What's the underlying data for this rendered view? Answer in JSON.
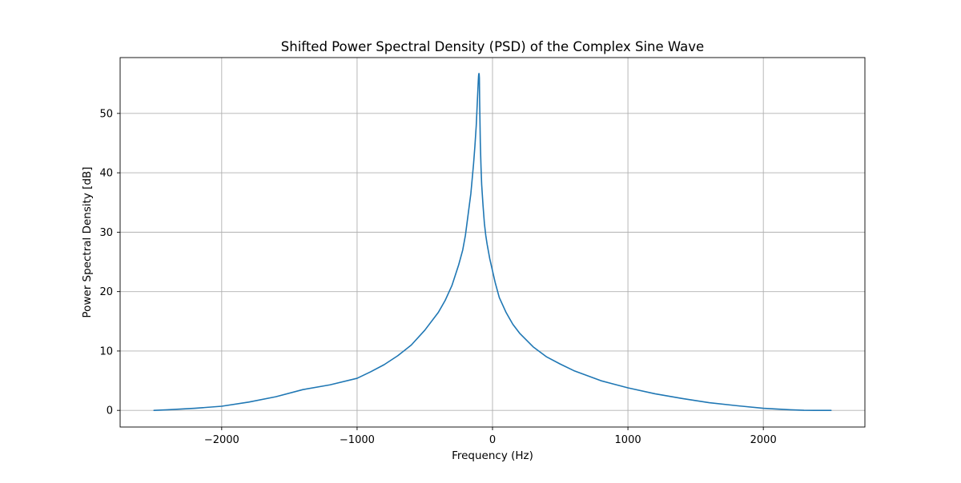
{
  "chart_data": {
    "type": "line",
    "title": "Shifted Power Spectral Density (PSD) of the Complex Sine Wave",
    "xlabel": "Frequency (Hz)",
    "ylabel": "Power Spectral Density [dB]",
    "xlim": [
      -2750,
      2750
    ],
    "ylim": [
      -2.8,
      59.4
    ],
    "xticks": [
      -2000,
      -1000,
      0,
      1000,
      2000
    ],
    "xtick_labels": [
      "−2000",
      "−1000",
      "0",
      "1000",
      "2000"
    ],
    "yticks": [
      0,
      10,
      20,
      30,
      40,
      50
    ],
    "ytick_labels": [
      "0",
      "10",
      "20",
      "30",
      "40",
      "50"
    ],
    "grid": true,
    "line_color": "#1f77b4",
    "series": [
      {
        "x": [
          -2500,
          -2400,
          -2200,
          -2000,
          -1800,
          -1600,
          -1400,
          -1200,
          -1000,
          -900,
          -800,
          -700,
          -600,
          -500,
          -400,
          -350,
          -300,
          -250,
          -220,
          -200,
          -180,
          -160,
          -140,
          -130,
          -120,
          -115,
          -110,
          -105,
          -103,
          -101,
          -100,
          -99,
          -97,
          -95,
          -90,
          -85,
          -80,
          -70,
          -60,
          -50,
          -40,
          -20,
          0,
          20,
          50,
          100,
          150,
          200,
          300,
          400,
          500,
          600,
          800,
          1000,
          1200,
          1400,
          1600,
          1800,
          2000,
          2200,
          2300,
          2400,
          2500
        ],
        "y": [
          0.0,
          0.1,
          0.35,
          0.7,
          1.4,
          2.3,
          3.5,
          4.3,
          5.4,
          6.5,
          7.7,
          9.2,
          11.0,
          13.5,
          16.5,
          18.5,
          21.0,
          24.5,
          27.0,
          29.5,
          33.0,
          36.5,
          41.5,
          44.5,
          48.0,
          50.5,
          53.0,
          55.5,
          56.3,
          56.7,
          56.7,
          56.7,
          56.0,
          52.0,
          45.0,
          41.0,
          38.0,
          34.5,
          31.5,
          29.5,
          28.0,
          25.5,
          23.5,
          21.5,
          19.0,
          16.5,
          14.5,
          13.0,
          10.7,
          9.0,
          7.8,
          6.7,
          5.0,
          3.8,
          2.8,
          2.0,
          1.3,
          0.8,
          0.35,
          0.1,
          0.02,
          0.0,
          0.0
        ]
      }
    ]
  }
}
